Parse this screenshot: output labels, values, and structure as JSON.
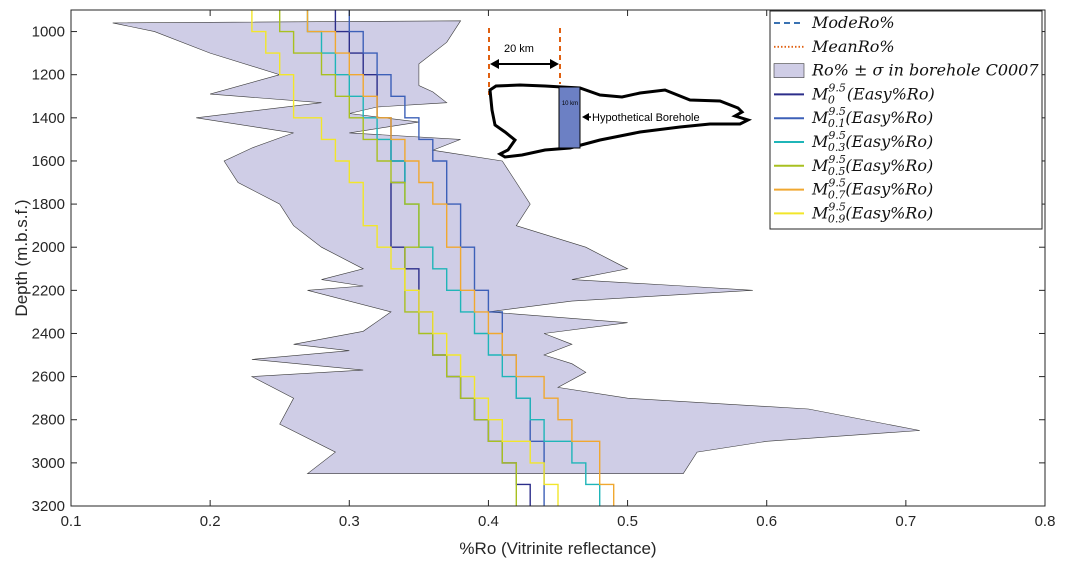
{
  "chart_data": {
    "type": "line",
    "title": "",
    "xlabel": "%Ro (Vitrinite reflectance)",
    "ylabel": "Depth (m.b.s.f.)",
    "xlim": [
      0.1,
      0.8
    ],
    "ylim": [
      900,
      3200
    ],
    "y_reversed": true,
    "grid": false,
    "legend_position": "top-right",
    "x_ticks": [
      "0.1",
      "0.2",
      "0.3",
      "0.4",
      "0.5",
      "0.6",
      "0.7",
      "0.8"
    ],
    "y_ticks": [
      "1000",
      "1200",
      "1400",
      "1600",
      "1800",
      "2000",
      "2200",
      "2400",
      "2600",
      "2800",
      "3000",
      "3200"
    ],
    "band": {
      "name": "Ro% ± σ in borehole C0007",
      "color": "#cfcde6",
      "lower": [
        [
          0.13,
          960
        ],
        [
          0.16,
          1000
        ],
        [
          0.2,
          1100
        ],
        [
          0.25,
          1200
        ],
        [
          0.2,
          1290
        ],
        [
          0.28,
          1330
        ],
        [
          0.19,
          1400
        ],
        [
          0.26,
          1470
        ],
        [
          0.23,
          1540
        ],
        [
          0.21,
          1600
        ],
        [
          0.22,
          1700
        ],
        [
          0.25,
          1800
        ],
        [
          0.26,
          1900
        ],
        [
          0.28,
          2000
        ],
        [
          0.31,
          2100
        ],
        [
          0.28,
          2150
        ],
        [
          0.31,
          2180
        ],
        [
          0.27,
          2200
        ],
        [
          0.33,
          2300
        ],
        [
          0.31,
          2390
        ],
        [
          0.26,
          2450
        ],
        [
          0.3,
          2480
        ],
        [
          0.23,
          2520
        ],
        [
          0.31,
          2570
        ],
        [
          0.23,
          2600
        ],
        [
          0.26,
          2700
        ],
        [
          0.25,
          2820
        ],
        [
          0.29,
          2950
        ],
        [
          0.27,
          3050
        ]
      ],
      "upper": [
        [
          0.38,
          950
        ],
        [
          0.37,
          1050
        ],
        [
          0.35,
          1150
        ],
        [
          0.35,
          1250
        ],
        [
          0.36,
          1280
        ],
        [
          0.37,
          1330
        ],
        [
          0.32,
          1350
        ],
        [
          0.3,
          1380
        ],
        [
          0.35,
          1420
        ],
        [
          0.3,
          1470
        ],
        [
          0.38,
          1500
        ],
        [
          0.36,
          1550
        ],
        [
          0.41,
          1600
        ],
        [
          0.42,
          1700
        ],
        [
          0.43,
          1800
        ],
        [
          0.42,
          1900
        ],
        [
          0.47,
          2000
        ],
        [
          0.5,
          2100
        ],
        [
          0.46,
          2150
        ],
        [
          0.54,
          2180
        ],
        [
          0.59,
          2200
        ],
        [
          0.46,
          2250
        ],
        [
          0.4,
          2300
        ],
        [
          0.5,
          2350
        ],
        [
          0.44,
          2400
        ],
        [
          0.46,
          2450
        ],
        [
          0.44,
          2500
        ],
        [
          0.46,
          2540
        ],
        [
          0.47,
          2580
        ],
        [
          0.45,
          2650
        ],
        [
          0.5,
          2700
        ],
        [
          0.63,
          2750
        ],
        [
          0.71,
          2850
        ],
        [
          0.6,
          2900
        ],
        [
          0.55,
          2950
        ],
        [
          0.54,
          3050
        ]
      ]
    },
    "series": [
      {
        "name": "M_0^{9.5}(Easy%Ro)",
        "color": "#2c2e8a",
        "points": [
          [
            0.29,
            900
          ],
          [
            0.29,
            1000
          ],
          [
            0.3,
            1100
          ],
          [
            0.31,
            1200
          ],
          [
            0.32,
            1300
          ],
          [
            0.32,
            1400
          ],
          [
            0.33,
            1500
          ],
          [
            0.33,
            1600
          ],
          [
            0.34,
            1700
          ],
          [
            0.33,
            1900
          ],
          [
            0.33,
            2000
          ],
          [
            0.34,
            2100
          ],
          [
            0.35,
            2300
          ],
          [
            0.36,
            2400
          ],
          [
            0.36,
            2500
          ],
          [
            0.37,
            2600
          ],
          [
            0.38,
            2700
          ],
          [
            0.39,
            2800
          ],
          [
            0.4,
            2900
          ],
          [
            0.41,
            3000
          ],
          [
            0.42,
            3100
          ],
          [
            0.43,
            3200
          ]
        ]
      },
      {
        "name": "M_{0.1}^{9.5}(Easy%Ro)",
        "color": "#3d60b8",
        "points": [
          [
            0.3,
            900
          ],
          [
            0.3,
            1000
          ],
          [
            0.31,
            1100
          ],
          [
            0.32,
            1200
          ],
          [
            0.33,
            1300
          ],
          [
            0.34,
            1400
          ],
          [
            0.35,
            1500
          ],
          [
            0.36,
            1600
          ],
          [
            0.37,
            1700
          ],
          [
            0.37,
            1800
          ],
          [
            0.38,
            1900
          ],
          [
            0.38,
            2000
          ],
          [
            0.39,
            2100
          ],
          [
            0.39,
            2200
          ],
          [
            0.4,
            2300
          ],
          [
            0.41,
            2400
          ],
          [
            0.41,
            2500
          ],
          [
            0.42,
            2700
          ],
          [
            0.43,
            2900
          ],
          [
            0.44,
            3100
          ],
          [
            0.44,
            3200
          ]
        ]
      },
      {
        "name": "M_{0.3}^{9.5}(Easy%Ro)",
        "color": "#1fb5b8",
        "points": [
          [
            0.27,
            900
          ],
          [
            0.27,
            1000
          ],
          [
            0.28,
            1100
          ],
          [
            0.29,
            1200
          ],
          [
            0.3,
            1300
          ],
          [
            0.31,
            1400
          ],
          [
            0.32,
            1500
          ],
          [
            0.33,
            1600
          ],
          [
            0.34,
            1800
          ],
          [
            0.35,
            2000
          ],
          [
            0.36,
            2100
          ],
          [
            0.37,
            2200
          ],
          [
            0.38,
            2300
          ],
          [
            0.39,
            2400
          ],
          [
            0.4,
            2500
          ],
          [
            0.41,
            2600
          ],
          [
            0.42,
            2700
          ],
          [
            0.43,
            2800
          ],
          [
            0.44,
            2900
          ],
          [
            0.46,
            3000
          ],
          [
            0.47,
            3100
          ],
          [
            0.48,
            3200
          ]
        ]
      },
      {
        "name": "M_{0.5}^{9.5}(Easy%Ro)",
        "color": "#a8c020",
        "points": [
          [
            0.25,
            900
          ],
          [
            0.25,
            1000
          ],
          [
            0.26,
            1100
          ],
          [
            0.28,
            1200
          ],
          [
            0.29,
            1300
          ],
          [
            0.3,
            1400
          ],
          [
            0.31,
            1500
          ],
          [
            0.32,
            1600
          ],
          [
            0.33,
            1700
          ],
          [
            0.34,
            1800
          ],
          [
            0.35,
            2000
          ],
          [
            0.34,
            2100
          ],
          [
            0.34,
            2300
          ],
          [
            0.35,
            2400
          ],
          [
            0.36,
            2500
          ],
          [
            0.37,
            2600
          ],
          [
            0.38,
            2700
          ],
          [
            0.39,
            2800
          ],
          [
            0.4,
            2900
          ],
          [
            0.41,
            3000
          ],
          [
            0.42,
            3100
          ],
          [
            0.42,
            3200
          ]
        ]
      },
      {
        "name": "M_{0.7}^{9.5}(Easy%Ro)",
        "color": "#f0a830",
        "points": [
          [
            0.27,
            900
          ],
          [
            0.27,
            1000
          ],
          [
            0.29,
            1100
          ],
          [
            0.3,
            1200
          ],
          [
            0.31,
            1300
          ],
          [
            0.32,
            1400
          ],
          [
            0.33,
            1500
          ],
          [
            0.34,
            1600
          ],
          [
            0.35,
            1700
          ],
          [
            0.36,
            1800
          ],
          [
            0.37,
            2000
          ],
          [
            0.38,
            2100
          ],
          [
            0.38,
            2200
          ],
          [
            0.39,
            2300
          ],
          [
            0.4,
            2400
          ],
          [
            0.41,
            2500
          ],
          [
            0.42,
            2600
          ],
          [
            0.44,
            2700
          ],
          [
            0.45,
            2800
          ],
          [
            0.46,
            2900
          ],
          [
            0.48,
            3000
          ],
          [
            0.48,
            3100
          ],
          [
            0.49,
            3200
          ]
        ]
      },
      {
        "name": "M_{0.9}^{9.5}(Easy%Ro)",
        "color": "#f2e62a",
        "points": [
          [
            0.23,
            900
          ],
          [
            0.23,
            1000
          ],
          [
            0.24,
            1100
          ],
          [
            0.25,
            1200
          ],
          [
            0.26,
            1300
          ],
          [
            0.26,
            1400
          ],
          [
            0.28,
            1500
          ],
          [
            0.29,
            1600
          ],
          [
            0.3,
            1700
          ],
          [
            0.31,
            1900
          ],
          [
            0.32,
            2000
          ],
          [
            0.33,
            2100
          ],
          [
            0.34,
            2200
          ],
          [
            0.35,
            2300
          ],
          [
            0.36,
            2400
          ],
          [
            0.37,
            2500
          ],
          [
            0.38,
            2600
          ],
          [
            0.39,
            2700
          ],
          [
            0.4,
            2800
          ],
          [
            0.41,
            2900
          ],
          [
            0.43,
            3000
          ],
          [
            0.44,
            3100
          ],
          [
            0.45,
            3200
          ]
        ]
      }
    ],
    "legend": [
      {
        "kind": "dash",
        "color": "#1f5fa8",
        "main": "ModeRo%",
        "sub": "",
        "sup": "",
        "tail": ""
      },
      {
        "kind": "dot",
        "color": "#e06010",
        "main": "MeanRo%",
        "sub": "",
        "sup": "",
        "tail": ""
      },
      {
        "kind": "patch",
        "color": "#cfcde6",
        "main": "Ro% ± σ in borehole C0007",
        "sub": "",
        "sup": "",
        "tail": ""
      },
      {
        "kind": "line",
        "color": "#2c2e8a",
        "main": "M",
        "sub": "0",
        "sup": "9.5",
        "tail": "(Easy%Ro)"
      },
      {
        "kind": "line",
        "color": "#3d60b8",
        "main": "M",
        "sub": "0.1",
        "sup": "9.5",
        "tail": "(Easy%Ro)"
      },
      {
        "kind": "line",
        "color": "#1fb5b8",
        "main": "M",
        "sub": "0.3",
        "sup": "9.5",
        "tail": "(Easy%Ro)"
      },
      {
        "kind": "line",
        "color": "#a8c020",
        "main": "M",
        "sub": "0.5",
        "sup": "9.5",
        "tail": "(Easy%Ro)"
      },
      {
        "kind": "line",
        "color": "#f0a830",
        "main": "M",
        "sub": "0.7",
        "sup": "9.5",
        "tail": "(Easy%Ro)"
      },
      {
        "kind": "line",
        "color": "#f2e62a",
        "main": "M",
        "sub": "0.9",
        "sup": "9.5",
        "tail": "(Easy%Ro)"
      }
    ],
    "inset": {
      "distance_label": "20 km",
      "depth_label": "10 km",
      "borehole_label": "Hypothetical Borehole"
    }
  }
}
